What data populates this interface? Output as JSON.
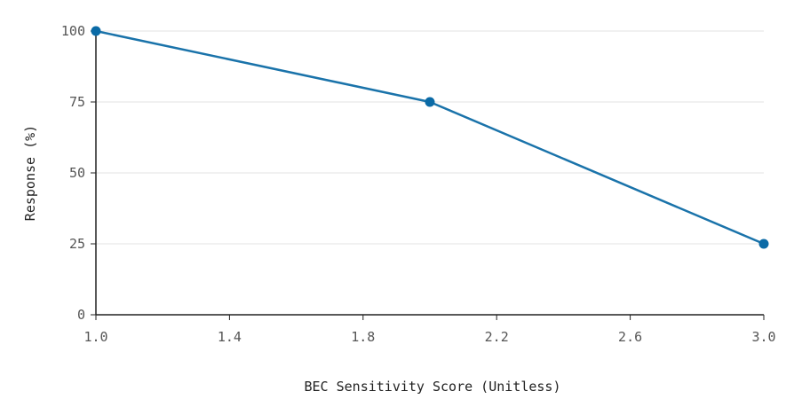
{
  "chart_data": {
    "type": "line",
    "xlabel": "BEC Sensitivity Score (Unitless)",
    "ylabel": "Response (%)",
    "x_ticks": [
      "1.0",
      "1.4",
      "1.8",
      "2.2",
      "2.6",
      "3.0"
    ],
    "y_ticks": [
      "0",
      "25",
      "50",
      "75",
      "100"
    ],
    "xlim": [
      1.0,
      3.0
    ],
    "ylim": [
      0,
      100
    ],
    "grid": "horizontal",
    "series": [
      {
        "x": [
          1.0,
          2.0,
          3.0
        ],
        "y": [
          100,
          75,
          25
        ],
        "color": "#1a73aa"
      }
    ],
    "colors": {
      "line": "#1a73aa",
      "marker": "#0a6aa6",
      "grid": "#e3e3e3",
      "axis": "#222222"
    }
  }
}
